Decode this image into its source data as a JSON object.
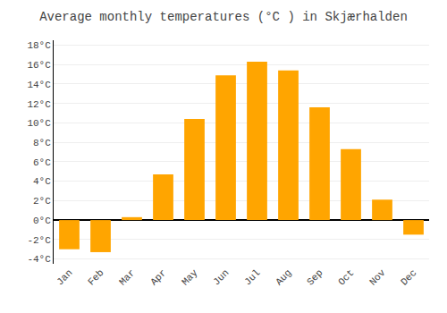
{
  "chart_data": {
    "type": "bar",
    "title": "Average monthly temperatures (°C ) in Skjærhalden",
    "categories": [
      "Jan",
      "Feb",
      "Mar",
      "Apr",
      "May",
      "Jun",
      "Jul",
      "Aug",
      "Sep",
      "Oct",
      "Nov",
      "Dec"
    ],
    "values": [
      -3.0,
      -3.3,
      0.3,
      4.7,
      10.4,
      14.9,
      16.3,
      15.4,
      11.6,
      7.3,
      2.1,
      -1.5
    ],
    "color": "#FFA500",
    "ylim": [
      -4.5,
      18.5
    ],
    "yticks": [
      {
        "value": -4,
        "label": "-4°C"
      },
      {
        "value": -2,
        "label": "-2°C"
      },
      {
        "value": 0,
        "label": "0°C"
      },
      {
        "value": 2,
        "label": "2°C"
      },
      {
        "value": 4,
        "label": "4°C"
      },
      {
        "value": 6,
        "label": "6°C"
      },
      {
        "value": 8,
        "label": "8°C"
      },
      {
        "value": 10,
        "label": "10°C"
      },
      {
        "value": 12,
        "label": "12°C"
      },
      {
        "value": 14,
        "label": "14°C"
      },
      {
        "value": 16,
        "label": "16°C"
      },
      {
        "value": 18,
        "label": "18°C"
      }
    ],
    "grid": true
  }
}
